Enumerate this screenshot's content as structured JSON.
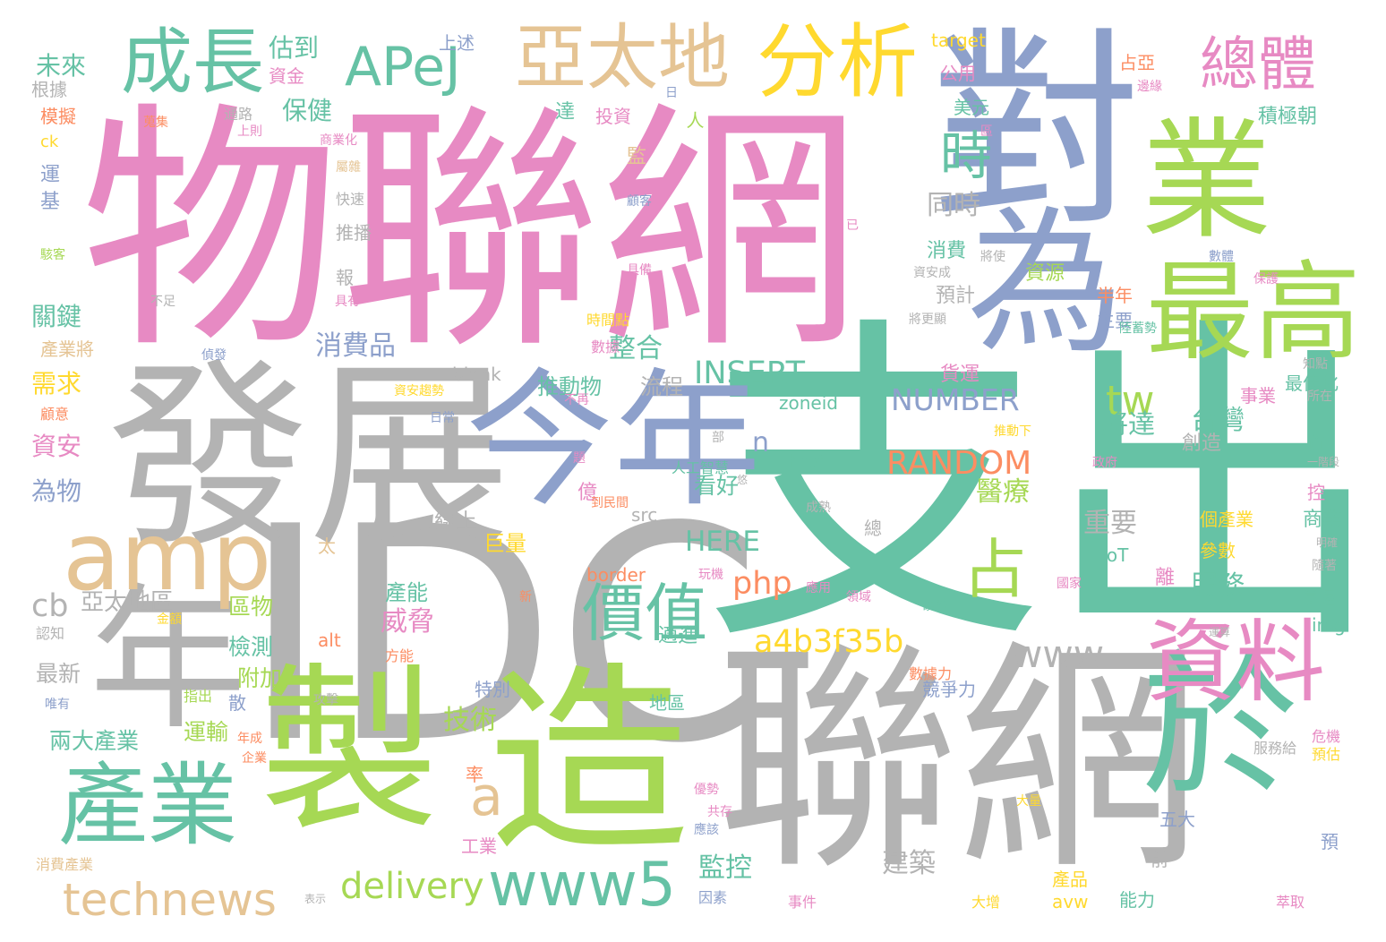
{
  "palette": {
    "pink": "#e78ac3",
    "periwinkle": "#8da0cb",
    "teal": "#66c2a5",
    "green": "#a6d854",
    "yellow": "#ffd92f",
    "tan": "#e5c494",
    "gray": "#b3b3b3",
    "orange": "#fc8d62"
  },
  "words": [
    {
      "text": "物聯網",
      "color": "pink"
    },
    {
      "text": "支出",
      "color": "teal"
    },
    {
      "text": "對",
      "color": "periwinkle"
    },
    {
      "text": "IDC",
      "color": "gray"
    },
    {
      "text": "聯網",
      "color": "gray"
    },
    {
      "text": "發展",
      "color": "gray"
    },
    {
      "text": "製",
      "color": "green"
    },
    {
      "text": "造",
      "color": "green"
    },
    {
      "text": "業",
      "color": "green"
    },
    {
      "text": "今年",
      "color": "periwinkle"
    },
    {
      "text": "為",
      "color": "periwinkle"
    },
    {
      "text": "年",
      "color": "gray"
    },
    {
      "text": "於",
      "color": "teal"
    },
    {
      "text": "最高",
      "color": "green"
    },
    {
      "text": "產業",
      "color": "teal"
    },
    {
      "text": "資料",
      "color": "pink"
    },
    {
      "text": "分析",
      "color": "yellow"
    },
    {
      "text": "成長",
      "color": "teal"
    },
    {
      "text": "亞太地",
      "color": "tan"
    },
    {
      "text": "APeJ",
      "color": "teal"
    },
    {
      "text": "總體",
      "color": "pink"
    },
    {
      "text": "amp",
      "color": "tan"
    },
    {
      "text": "價值",
      "color": "teal"
    },
    {
      "text": "時",
      "color": "teal"
    },
    {
      "text": "www5",
      "color": "teal"
    },
    {
      "text": "technews",
      "color": "tan"
    },
    {
      "text": "占",
      "color": "green"
    },
    {
      "text": "tw",
      "color": "green"
    },
    {
      "text": "a",
      "color": "tan"
    },
    {
      "text": "delivery",
      "color": "green"
    },
    {
      "text": "a4b3f35b",
      "color": "yellow"
    },
    {
      "text": "www",
      "color": "gray"
    },
    {
      "text": "RANDOM",
      "color": "orange"
    },
    {
      "text": "INSERT",
      "color": "teal"
    },
    {
      "text": "NUMBER",
      "color": "periwinkle"
    },
    {
      "text": "HERE",
      "color": "teal"
    },
    {
      "text": "php",
      "color": "orange"
    },
    {
      "text": "威脅",
      "color": "pink"
    },
    {
      "text": "cb",
      "color": "gray"
    },
    {
      "text": "n",
      "color": "periwinkle"
    },
    {
      "text": "整合",
      "color": "teal"
    },
    {
      "text": "消費品",
      "color": "periwinkle"
    },
    {
      "text": "技術",
      "color": "green"
    },
    {
      "text": "醫療",
      "color": "green"
    },
    {
      "text": "台灣",
      "color": "teal"
    },
    {
      "text": "將達",
      "color": "teal"
    },
    {
      "text": "重要",
      "color": "gray"
    },
    {
      "text": "服務",
      "color": "teal"
    },
    {
      "text": "建築",
      "color": "gray"
    },
    {
      "text": "監控",
      "color": "teal"
    },
    {
      "text": "同時",
      "color": "gray"
    },
    {
      "text": "未來",
      "color": "teal"
    },
    {
      "text": "保健",
      "color": "teal"
    },
    {
      "text": "估到",
      "color": "teal"
    },
    {
      "text": "關鍵",
      "color": "teal"
    },
    {
      "text": "需求",
      "color": "yellow"
    },
    {
      "text": "資安",
      "color": "pink"
    },
    {
      "text": "為物",
      "color": "periwinkle"
    },
    {
      "text": "亞太地區",
      "color": "gray"
    },
    {
      "text": "區物",
      "color": "green"
    },
    {
      "text": "檢測",
      "color": "teal"
    },
    {
      "text": "附加",
      "color": "green"
    },
    {
      "text": "運輸",
      "color": "green"
    },
    {
      "text": "兩大產業",
      "color": "teal"
    },
    {
      "text": "最新",
      "color": "gray"
    },
    {
      "text": "推動物",
      "color": "teal"
    },
    {
      "text": "流程",
      "color": "gray"
    },
    {
      "text": "線上",
      "color": "gray"
    },
    {
      "text": "看好",
      "color": "teal"
    },
    {
      "text": "巨量",
      "color": "yellow"
    },
    {
      "text": "產能",
      "color": "teal"
    },
    {
      "text": "alt",
      "color": "orange"
    },
    {
      "text": "border",
      "color": "orange"
    },
    {
      "text": "zoneid",
      "color": "teal"
    },
    {
      "text": "href",
      "color": "teal"
    },
    {
      "text": "target",
      "color": "yellow"
    },
    {
      "text": "blank",
      "color": "gray"
    },
    {
      "text": "src",
      "color": "gray"
    },
    {
      "text": "img",
      "color": "teal"
    },
    {
      "text": "IoT",
      "color": "teal"
    },
    {
      "text": "avw",
      "color": "yellow"
    },
    {
      "text": "ck",
      "color": "yellow"
    },
    {
      "text": "模擬",
      "color": "orange"
    },
    {
      "text": "根據",
      "color": "gray"
    },
    {
      "text": "資金",
      "color": "pink"
    },
    {
      "text": "上述",
      "color": "periwinkle"
    },
    {
      "text": "公用",
      "color": "pink"
    },
    {
      "text": "美元",
      "color": "teal"
    },
    {
      "text": "投資",
      "color": "pink"
    },
    {
      "text": "達",
      "color": "teal"
    },
    {
      "text": "積極朝",
      "color": "teal"
    },
    {
      "text": "最佳化",
      "color": "teal"
    },
    {
      "text": "事業",
      "color": "pink"
    },
    {
      "text": "個產業",
      "color": "yellow"
    },
    {
      "text": "參數",
      "color": "yellow"
    },
    {
      "text": "離",
      "color": "pink"
    },
    {
      "text": "億",
      "color": "pink"
    },
    {
      "text": "率",
      "color": "orange"
    },
    {
      "text": "工業",
      "color": "pink"
    },
    {
      "text": "五大",
      "color": "periwinkle"
    },
    {
      "text": "前",
      "color": "gray"
    },
    {
      "text": "能力",
      "color": "teal"
    },
    {
      "text": "產品",
      "color": "yellow"
    },
    {
      "text": "消費",
      "color": "teal"
    },
    {
      "text": "資源",
      "color": "green"
    },
    {
      "text": "預計",
      "color": "gray"
    },
    {
      "text": "半年",
      "color": "orange"
    },
    {
      "text": "主要",
      "color": "periwinkle"
    },
    {
      "text": "創造",
      "color": "gray"
    },
    {
      "text": "商業",
      "color": "teal"
    },
    {
      "text": "貨運",
      "color": "pink"
    },
    {
      "text": "適進",
      "color": "teal"
    },
    {
      "text": "地區",
      "color": "teal"
    },
    {
      "text": "散",
      "color": "periwinkle"
    },
    {
      "text": "特別",
      "color": "periwinkle"
    },
    {
      "text": "報",
      "color": "gray"
    },
    {
      "text": "推播",
      "color": "gray"
    },
    {
      "text": "快速",
      "color": "gray"
    },
    {
      "text": "運",
      "color": "periwinkle"
    },
    {
      "text": "基",
      "color": "periwinkle"
    },
    {
      "text": "產業將",
      "color": "tan"
    },
    {
      "text": "顧意",
      "color": "orange"
    },
    {
      "text": "認知",
      "color": "gray"
    },
    {
      "text": "消費產業",
      "color": "tan"
    },
    {
      "text": "太",
      "color": "tan"
    },
    {
      "text": "總",
      "color": "gray"
    },
    {
      "text": "人",
      "color": "green"
    },
    {
      "text": "占亞",
      "color": "orange"
    },
    {
      "text": "控",
      "color": "pink"
    },
    {
      "text": "貨",
      "color": "teal"
    },
    {
      "text": "預",
      "color": "periwinkle"
    },
    {
      "text": "監",
      "color": "tan"
    },
    {
      "text": "掌握",
      "color": "teal"
    },
    {
      "text": "隨著",
      "color": "gray"
    },
    {
      "text": "明確",
      "color": "gray"
    },
    {
      "text": "一階段",
      "color": "gray"
    },
    {
      "text": "預估",
      "color": "yellow"
    },
    {
      "text": "競爭力",
      "color": "periwinkle"
    },
    {
      "text": "數據力",
      "color": "orange"
    },
    {
      "text": "萃取",
      "color": "pink"
    },
    {
      "text": "大增",
      "color": "yellow"
    },
    {
      "text": "事件",
      "color": "pink"
    },
    {
      "text": "因素",
      "color": "periwinkle"
    },
    {
      "text": "共存",
      "color": "pink"
    },
    {
      "text": "企業",
      "color": "orange"
    },
    {
      "text": "指出",
      "color": "green"
    },
    {
      "text": "方能",
      "color": "orange"
    },
    {
      "text": "攻擊",
      "color": "gray"
    },
    {
      "text": "唯有",
      "color": "periwinkle"
    },
    {
      "text": "表示",
      "color": "gray"
    },
    {
      "text": "服務給",
      "color": "gray"
    },
    {
      "text": "危機",
      "color": "pink"
    },
    {
      "text": "國家",
      "color": "pink"
    },
    {
      "text": "運算",
      "color": "gray"
    },
    {
      "text": "硬體",
      "color": "teal"
    },
    {
      "text": "玩機",
      "color": "pink"
    },
    {
      "text": "人工智慧",
      "color": "teal"
    },
    {
      "text": "到民間",
      "color": "orange"
    },
    {
      "text": "時間點",
      "color": "yellow"
    },
    {
      "text": "數據",
      "color": "pink"
    },
    {
      "text": "具有",
      "color": "pink"
    },
    {
      "text": "具備",
      "color": "pink"
    },
    {
      "text": "保護",
      "color": "pink"
    },
    {
      "text": "數體",
      "color": "periwinkle"
    },
    {
      "text": "將更顯",
      "color": "gray"
    },
    {
      "text": "陸蓄勢",
      "color": "teal"
    },
    {
      "text": "知點",
      "color": "gray"
    },
    {
      "text": "所在",
      "color": "gray"
    },
    {
      "text": "將使",
      "color": "gray"
    },
    {
      "text": "資安成",
      "color": "gray"
    },
    {
      "text": "推動下",
      "color": "yellow"
    },
    {
      "text": "政府",
      "color": "pink"
    },
    {
      "text": "不再",
      "color": "pink"
    },
    {
      "text": "日常",
      "color": "periwinkle"
    },
    {
      "text": "資安趨勢",
      "color": "yellow"
    },
    {
      "text": "偵發",
      "color": "periwinkle"
    },
    {
      "text": "不足",
      "color": "gray"
    },
    {
      "text": "駭客",
      "color": "green"
    },
    {
      "text": "蒐集",
      "color": "orange"
    },
    {
      "text": "上則",
      "color": "pink"
    },
    {
      "text": "商業化",
      "color": "pink"
    },
    {
      "text": "屬雜",
      "color": "tan"
    },
    {
      "text": "邊緣",
      "color": "pink"
    },
    {
      "text": "區",
      "color": "pink"
    },
    {
      "text": "日",
      "color": "periwinkle"
    },
    {
      "text": "已",
      "color": "pink"
    },
    {
      "text": "顧客",
      "color": "periwinkle"
    },
    {
      "text": "通路",
      "color": "gray"
    },
    {
      "text": "部",
      "color": "gray"
    },
    {
      "text": "題",
      "color": "pink"
    },
    {
      "text": "悠",
      "color": "gray"
    },
    {
      "text": "成熟",
      "color": "gray"
    },
    {
      "text": "應用",
      "color": "pink"
    },
    {
      "text": "新",
      "color": "orange"
    },
    {
      "text": "領域",
      "color": "pink"
    },
    {
      "text": "金額",
      "color": "yellow"
    },
    {
      "text": "年成",
      "color": "orange"
    },
    {
      "text": "優勢",
      "color": "pink"
    },
    {
      "text": "應該",
      "color": "periwinkle"
    },
    {
      "text": "大量",
      "color": "yellow"
    }
  ]
}
